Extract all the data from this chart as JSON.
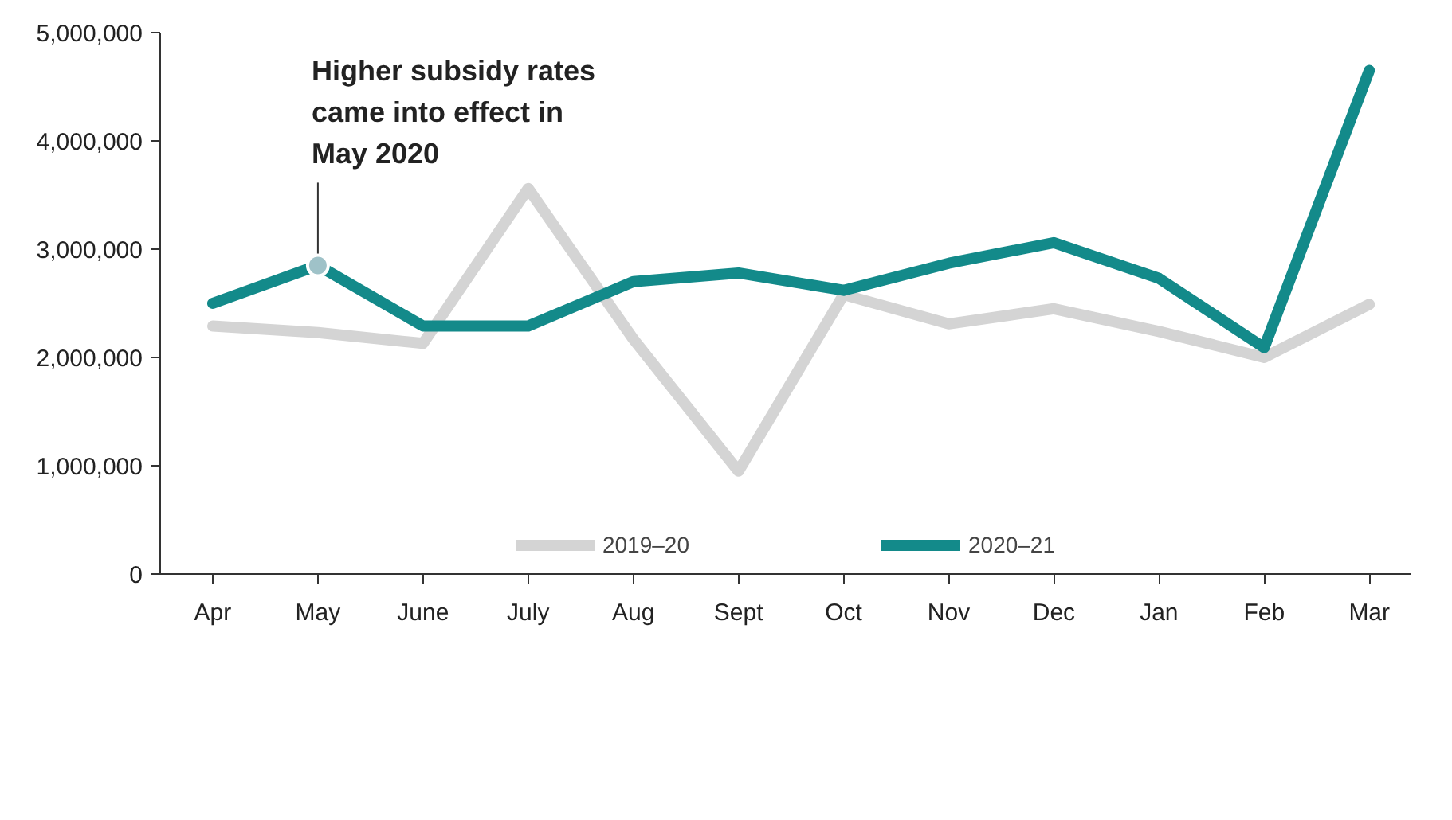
{
  "chart_data": {
    "type": "line",
    "categories": [
      "Apr",
      "May",
      "June",
      "July",
      "Aug",
      "Sept",
      "Oct",
      "Nov",
      "Dec",
      "Jan",
      "Feb",
      "Mar"
    ],
    "series": [
      {
        "name": "2019–20",
        "color": "#d4d4d4",
        "values": [
          2290000,
          2230000,
          2130000,
          3560000,
          2170000,
          950000,
          2580000,
          2310000,
          2450000,
          2240000,
          2000000,
          2490000
        ]
      },
      {
        "name": "2020–21",
        "color": "#138a8a",
        "values": [
          2500000,
          2850000,
          2290000,
          2290000,
          2700000,
          2780000,
          2620000,
          2870000,
          3060000,
          2730000,
          2090000,
          4650000
        ]
      }
    ],
    "ylim": [
      0,
      5000000
    ],
    "yticks": [
      {
        "value": 0,
        "label": "0"
      },
      {
        "value": 1000000,
        "label": "1,000,000"
      },
      {
        "value": 2000000,
        "label": "2,000,000"
      },
      {
        "value": 3000000,
        "label": "3,000,000"
      },
      {
        "value": 4000000,
        "label": "4,000,000"
      },
      {
        "value": 5000000,
        "label": "5,000,000"
      }
    ],
    "annotations": [
      {
        "text": "Higher subsidy rates\ncame into effect in\nMay 2020",
        "x": "May",
        "y": 2850000
      }
    ],
    "grid": false,
    "legend": "bottom",
    "marker": "none",
    "line_style": "solid"
  }
}
